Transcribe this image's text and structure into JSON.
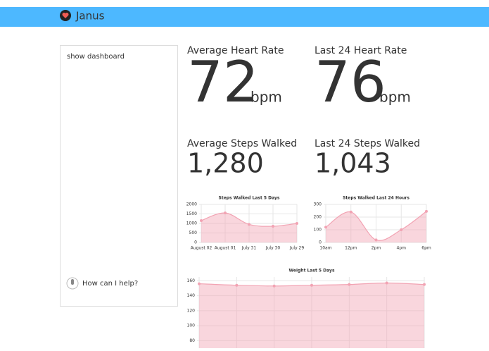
{
  "header": {
    "title": "Janus"
  },
  "sidebar": {
    "link": "show dashboard",
    "prompt": "How can I help?"
  },
  "stats": [
    {
      "label": "Average Heart Rate",
      "value": "72",
      "unit": "bpm"
    },
    {
      "label": "Last 24 Heart Rate",
      "value": "76",
      "unit": "bpm"
    },
    {
      "label": "Average Steps Walked",
      "value": "1,280"
    },
    {
      "label": "Last 24 Steps Walked",
      "value": "1,043"
    }
  ],
  "charts": [
    {
      "type": "line",
      "title": "Steps Walked Last 5 Days",
      "categories": [
        "August 02",
        "August 01",
        "July 31",
        "July 30",
        "July 29"
      ],
      "values": [
        1150,
        1550,
        950,
        850,
        1000
      ],
      "ylim": [
        0,
        2000
      ],
      "yticks": [
        0,
        500,
        1000,
        1500,
        2000
      ],
      "color": "#f2a3b3",
      "grid": true
    },
    {
      "type": "line",
      "title": "Steps Walked Last 24 Hours",
      "categories": [
        "10am",
        "12pm",
        "2pm",
        "4pm",
        "6pm"
      ],
      "values": [
        120,
        240,
        20,
        100,
        245
      ],
      "ylim": [
        0,
        300
      ],
      "yticks": [
        0,
        100,
        200,
        300
      ],
      "color": "#f2a3b3",
      "grid": true
    },
    {
      "type": "line",
      "title": "Weight Last 5 Days",
      "values": [
        156,
        154,
        153,
        154,
        155,
        157,
        155
      ],
      "ylim": [
        70,
        165
      ],
      "yticks": [
        80,
        100,
        120,
        140,
        160
      ],
      "color": "#f2a3b3",
      "grid": true
    }
  ]
}
